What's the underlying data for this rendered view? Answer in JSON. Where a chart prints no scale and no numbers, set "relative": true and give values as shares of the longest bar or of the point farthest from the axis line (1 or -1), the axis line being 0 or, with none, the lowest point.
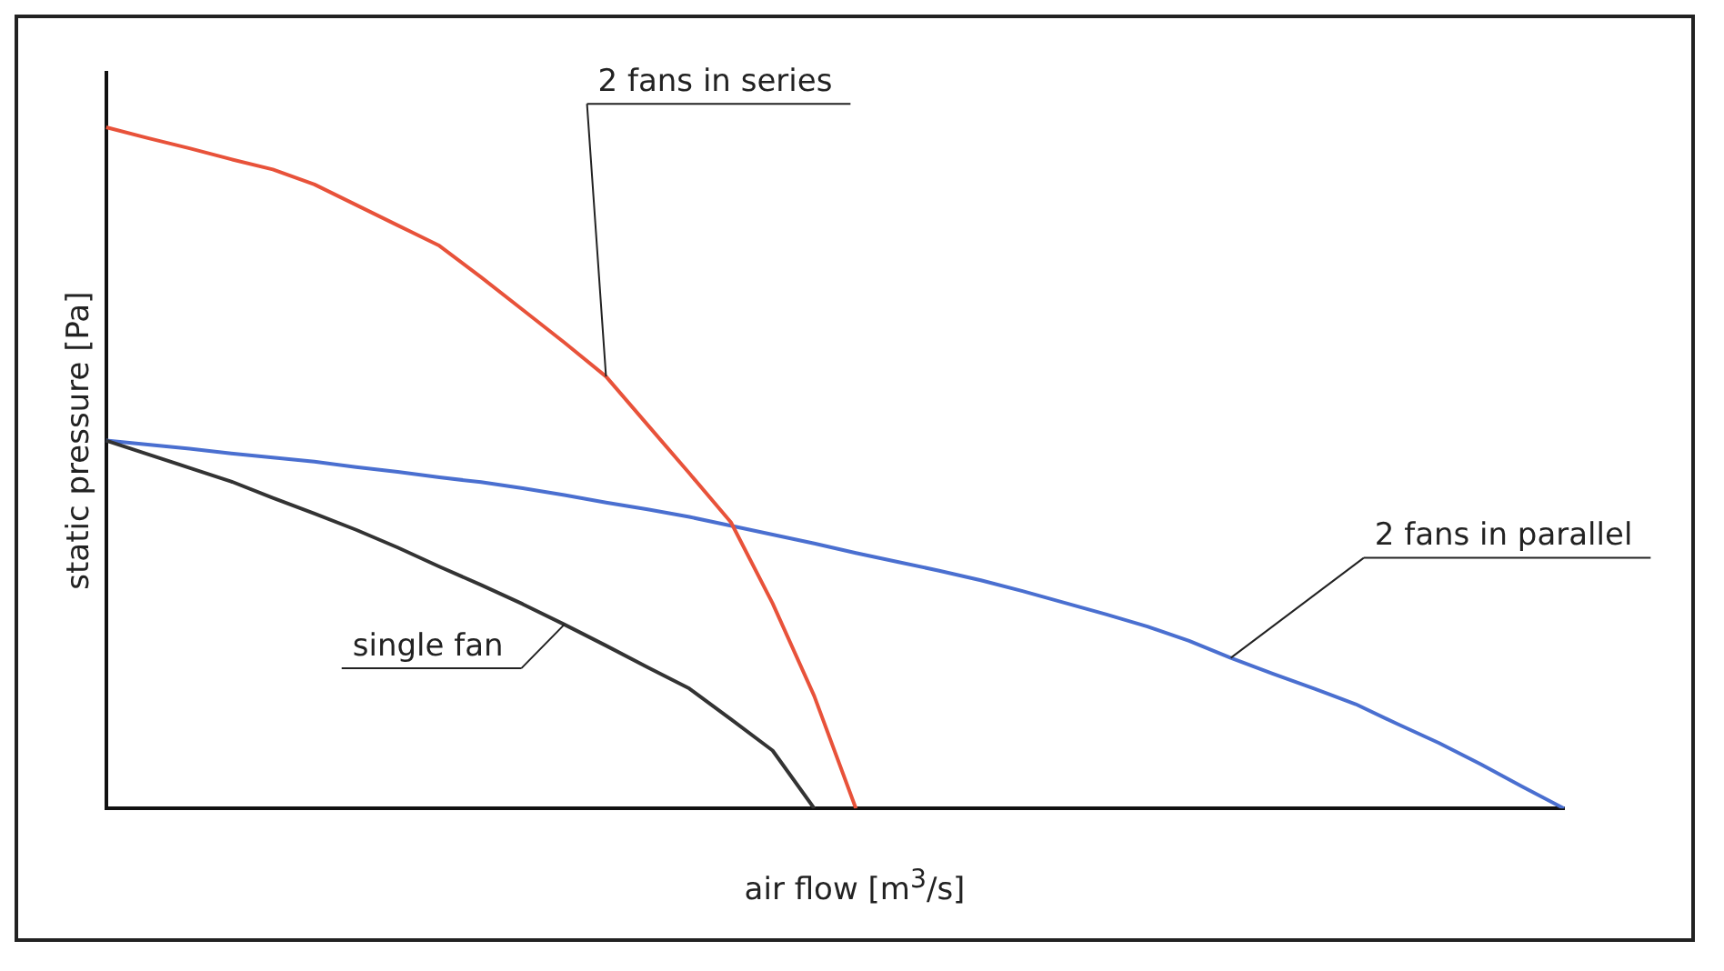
{
  "chart_data": {
    "type": "line",
    "relative": true,
    "xlabel": "air flow [m$^{3}$/s]",
    "ylabel": "static pressure [Pa]",
    "legend": false,
    "grid": false,
    "marker": "none",
    "line_style": "solid",
    "categories": [
      null,
      null,
      null,
      null,
      null,
      null,
      null,
      null,
      null,
      null,
      null,
      null,
      null,
      null,
      null,
      null,
      null,
      null,
      null,
      null,
      null,
      null,
      null,
      null,
      null,
      null,
      null,
      null,
      null,
      null,
      null,
      null,
      null,
      null,
      null,
      null
    ],
    "series": [
      {
        "name": "2 fans in series",
        "color": "#e8523a",
        "values": [
          1,
          0.984,
          0.969,
          0.953,
          0.938,
          0.916,
          0.886,
          0.856,
          0.826,
          0.78,
          0.732,
          0.684,
          0.634,
          0.563,
          0.492,
          0.42,
          0.301,
          0.165,
          0,
          null,
          null,
          null,
          null,
          null,
          null,
          null,
          null,
          null,
          null,
          null,
          null,
          null,
          null,
          null,
          null,
          null
        ]
      },
      {
        "name": "single fan",
        "color": "#333333",
        "values": [
          0.54,
          0.52,
          0.5,
          0.48,
          0.456,
          0.433,
          0.409,
          0.383,
          0.355,
          0.328,
          0.3,
          0.27,
          0.239,
          0.207,
          0.176,
          0.131,
          0.085,
          0,
          null,
          null,
          null,
          null,
          null,
          null,
          null,
          null,
          null,
          null,
          null,
          null,
          null,
          null,
          null,
          null,
          null,
          null
        ]
      },
      {
        "name": "2 fans in parallel",
        "color": "#4a6fd0",
        "values": [
          0.54,
          0.534,
          0.528,
          0.521,
          0.515,
          0.509,
          0.501,
          0.494,
          0.486,
          0.479,
          0.47,
          0.46,
          0.449,
          0.439,
          0.428,
          0.415,
          0.402,
          0.389,
          0.375,
          0.362,
          0.349,
          0.335,
          0.319,
          0.302,
          0.285,
          0.267,
          0.246,
          0.221,
          0.198,
          0.176,
          0.153,
          0.124,
          0.096,
          0.065,
          0.032,
          0
        ]
      }
    ]
  }
}
